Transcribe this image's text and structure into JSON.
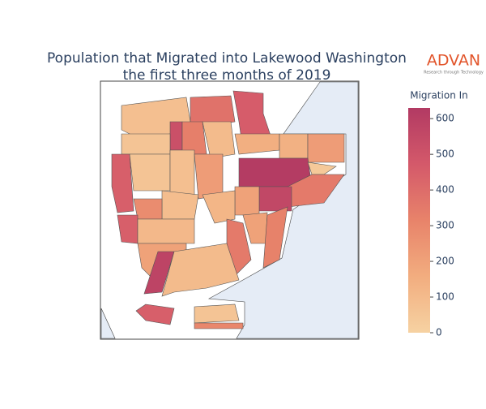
{
  "chart_data": {
    "type": "choropleth",
    "title": [
      "Population that Migrated into Lakewood Washington",
      "the first three months of 2019"
    ],
    "logo": {
      "name": "ADVAN",
      "tagline": "Research through Technology"
    },
    "colorbar_title": "Migration In",
    "values": [
      80,
      380,
      460,
      520,
      330,
      100,
      60,
      150,
      140,
      220,
      450,
      60,
      80,
      220,
      620,
      40,
      350,
      560,
      200,
      120,
      90,
      280,
      450,
      110,
      350,
      200,
      320,
      200,
      580,
      100,
      450,
      60,
      300
    ],
    "colorscale": [
      "#f6d2a2",
      "#f2ad7f",
      "#e8836a",
      "#d4596a",
      "#b23a63"
    ],
    "water_color": "#e5ecf6",
    "ylim": [
      0,
      630
    ],
    "yticks": [
      0,
      100,
      200,
      300,
      400,
      500,
      600
    ]
  }
}
